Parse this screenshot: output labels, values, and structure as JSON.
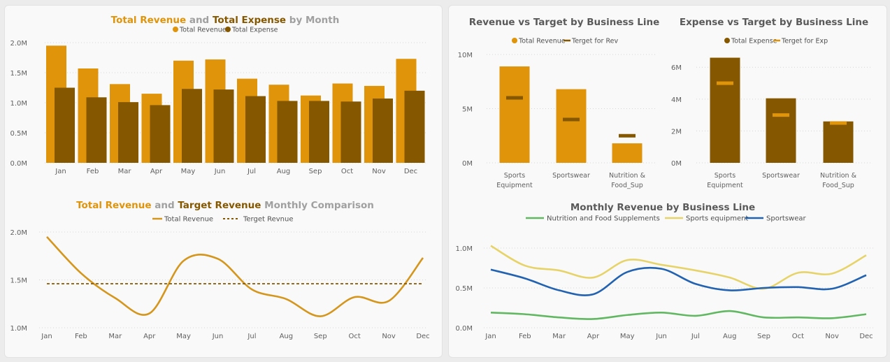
{
  "colors": {
    "revenue": "#e0940a",
    "expense": "#855800",
    "target_line": "#d4961c",
    "target_dash": "#855800",
    "title_grey": "#a0a0a0",
    "title_dark": "#5a5a5a",
    "nutrition": "#62b862",
    "sports_eq": "#e6d46a",
    "sportswear": "#2262b0"
  },
  "chart_data": [
    {
      "id": "rev-exp",
      "type": "bar",
      "title_parts": [
        {
          "text": "Total Revenue",
          "style": "revenue"
        },
        {
          "text": " and ",
          "style": "grey"
        },
        {
          "text": "Total Expense",
          "style": "expense"
        },
        {
          "text": " by Month",
          "style": "grey"
        }
      ],
      "legend": [
        "Total Revenue",
        "Total Expense"
      ],
      "legend_placement": "top-center",
      "categories": [
        "Jan",
        "Feb",
        "Mar",
        "Apr",
        "May",
        "Jun",
        "Jul",
        "Aug",
        "Sep",
        "Oct",
        "Nov",
        "Dec"
      ],
      "series": [
        {
          "name": "Total Revenue",
          "values": [
            1.95,
            1.57,
            1.31,
            1.15,
            1.7,
            1.72,
            1.4,
            1.3,
            1.12,
            1.32,
            1.28,
            1.73
          ]
        },
        {
          "name": "Total Expense",
          "values": [
            1.25,
            1.09,
            1.01,
            0.96,
            1.23,
            1.22,
            1.11,
            1.03,
            1.03,
            1.02,
            1.07,
            1.2
          ]
        }
      ],
      "yticks": [
        "0.0M",
        "0.5M",
        "1.0M",
        "1.5M",
        "2.0M"
      ],
      "ylim": [
        0,
        2.0
      ],
      "grid": true
    },
    {
      "id": "rev-target",
      "type": "line",
      "title_parts": [
        {
          "text": "Total Revenue",
          "style": "revenue"
        },
        {
          "text": " and ",
          "style": "grey"
        },
        {
          "text": "Target Revenue",
          "style": "expense"
        },
        {
          "text": "  Monthly Comparison",
          "style": "grey"
        }
      ],
      "legend": [
        "Total Revenue",
        "Terget Revnue"
      ],
      "legend_placement": "top-center",
      "categories": [
        "Jan",
        "Feb",
        "Mar",
        "Apr",
        "May",
        "Jun",
        "Jul",
        "Aug",
        "Sep",
        "Oct",
        "Nov",
        "Dec"
      ],
      "series": [
        {
          "name": "Total Revenue",
          "values": [
            1.95,
            1.57,
            1.31,
            1.15,
            1.7,
            1.72,
            1.4,
            1.3,
            1.12,
            1.32,
            1.28,
            1.73
          ]
        },
        {
          "name": "Terget Revnue",
          "values": [
            1.46,
            1.46,
            1.46,
            1.46,
            1.46,
            1.46,
            1.46,
            1.46,
            1.46,
            1.46,
            1.46,
            1.46
          ]
        }
      ],
      "yticks": [
        "1.0M",
        "1.5M",
        "2.0M"
      ],
      "ylim": [
        1.0,
        2.0
      ],
      "grid": true
    },
    {
      "id": "rev-line",
      "type": "bar",
      "title": "Revenue vs Target by Business Line",
      "legend": [
        "Total Revenue",
        "Terget for Rev"
      ],
      "legend_placement": "top-center",
      "categories": [
        [
          "Sports",
          "Equipment"
        ],
        [
          "Sportswear"
        ],
        [
          "Nutrition &",
          "Food_Sup"
        ]
      ],
      "series": [
        {
          "name": "Total Revenue",
          "values": [
            8.9,
            6.8,
            1.8
          ]
        },
        {
          "name": "Terget for Rev",
          "values": [
            6.0,
            4.0,
            2.5
          ]
        }
      ],
      "yticks": [
        "0M",
        "5M",
        "10M"
      ],
      "ylim": [
        0,
        10
      ],
      "grid": true
    },
    {
      "id": "exp-line",
      "type": "bar",
      "title": "Expense vs Target by Business Line",
      "legend": [
        "Total Expense",
        "Terget for Exp"
      ],
      "legend_placement": "top-center",
      "categories": [
        [
          "Sports",
          "Equipment"
        ],
        [
          "Sportswear"
        ],
        [
          "Nutrition &",
          "Food_Sup"
        ]
      ],
      "series": [
        {
          "name": "Total Expense",
          "values": [
            6.6,
            4.05,
            2.6
          ]
        },
        {
          "name": "Terget for Exp",
          "values": [
            5.0,
            3.0,
            2.5
          ]
        }
      ],
      "yticks": [
        "0M",
        "2M",
        "4M",
        "6M"
      ],
      "ylim": [
        0,
        6.8
      ],
      "grid": true
    },
    {
      "id": "monthly-bl",
      "type": "line",
      "title": "Monthly Revenue by Business Line",
      "legend": [
        "Nutrition and Food Supplements",
        "Sports equipment",
        "Sportswear"
      ],
      "legend_placement": "top-center",
      "categories": [
        "Jan",
        "Feb",
        "Mar",
        "Apr",
        "May",
        "Jun",
        "Jul",
        "Aug",
        "Sep",
        "Oct",
        "Nov",
        "Dec"
      ],
      "series": [
        {
          "name": "Nutrition and Food Supplements",
          "values": [
            0.19,
            0.17,
            0.13,
            0.11,
            0.16,
            0.19,
            0.15,
            0.21,
            0.13,
            0.13,
            0.12,
            0.17
          ]
        },
        {
          "name": "Sports equipment",
          "values": [
            1.03,
            0.78,
            0.72,
            0.63,
            0.85,
            0.79,
            0.72,
            0.63,
            0.49,
            0.69,
            0.68,
            0.91
          ]
        },
        {
          "name": "Sportswear",
          "values": [
            0.73,
            0.62,
            0.47,
            0.42,
            0.7,
            0.74,
            0.55,
            0.47,
            0.5,
            0.51,
            0.49,
            0.66
          ]
        }
      ],
      "yticks": [
        "0.0M",
        "0.5M",
        "1.0M"
      ],
      "ylim": [
        0,
        1.0
      ],
      "grid": true
    }
  ]
}
